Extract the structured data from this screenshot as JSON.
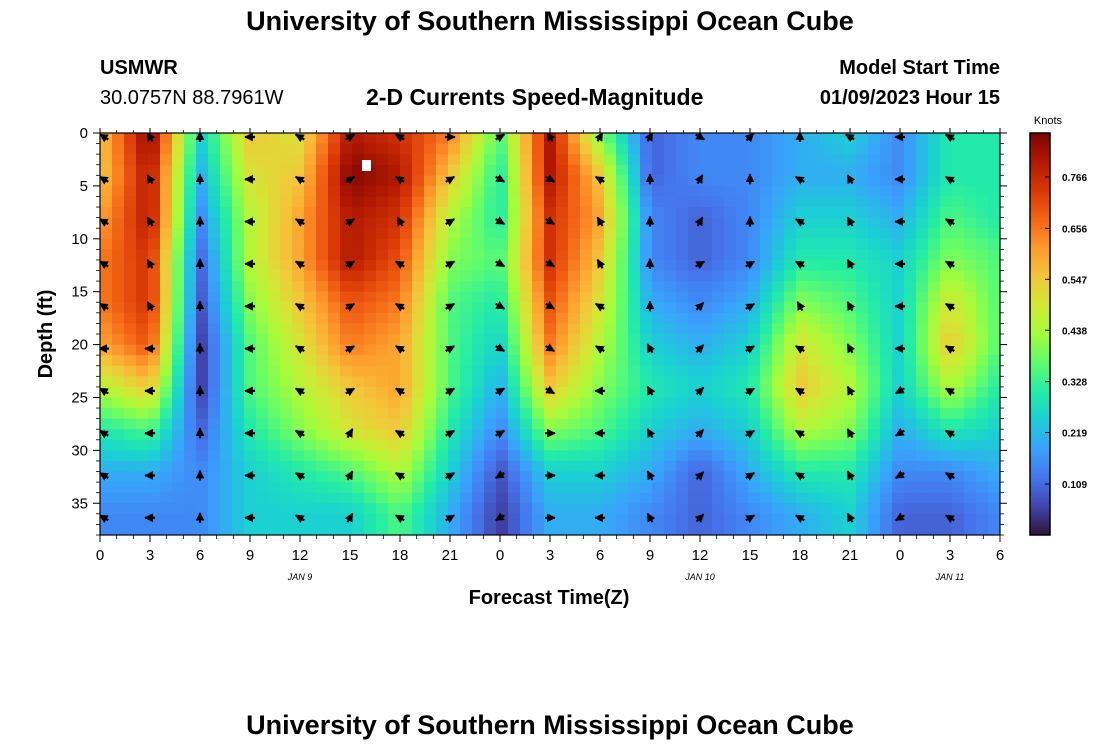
{
  "page": {
    "title": "University of Southern Mississippi Ocean Cube",
    "title_bottom": "University of Southern Mississippi Ocean Cube"
  },
  "header": {
    "station": "USMWR",
    "coords": "30.0757N  88.7961W",
    "model_label": "Model Start Time",
    "model_time": "01/09/2023 Hour 15",
    "subtitle": "2-D Currents Speed-Magnitude"
  },
  "chart_data": {
    "type": "heatmap",
    "title": "2-D Currents Speed-Magnitude",
    "xlabel": "Forecast Time(Z)",
    "ylabel": "Depth (ft)",
    "x_ticks": [
      "0",
      "3",
      "6",
      "9",
      "12",
      "15",
      "18",
      "21",
      "0",
      "3",
      "6",
      "9",
      "12",
      "15",
      "18",
      "21",
      "0",
      "3",
      "6"
    ],
    "x_range_hours": [
      0,
      54
    ],
    "day_labels": [
      {
        "text": "JAN 9",
        "hour": 12
      },
      {
        "text": "JAN 10",
        "hour": 36
      },
      {
        "text": "JAN 11",
        "hour": 51
      }
    ],
    "y_ticks": [
      0,
      5,
      10,
      15,
      20,
      25,
      30,
      35
    ],
    "y_range": [
      0,
      38
    ],
    "y_inverted": true,
    "colorbar": {
      "label": "Knots",
      "ticks": [
        "0.766",
        "0.656",
        "0.547",
        "0.438",
        "0.328",
        "0.219",
        "0.109"
      ],
      "range": [
        0.0,
        0.86
      ],
      "colors": [
        "#30123b",
        "#4145ab",
        "#4675ed",
        "#39a2fc",
        "#1bcfd4",
        "#24eca6",
        "#61fc6c",
        "#a4fc3b",
        "#d1e834",
        "#f3c63a",
        "#fe9b2d",
        "#f36315",
        "#d93806",
        "#b11901",
        "#7a0402"
      ]
    },
    "speed_grid_depths": [
      0,
      4,
      8,
      12,
      16,
      20,
      24,
      28,
      32,
      36
    ],
    "speed_grid_hours": [
      0,
      3,
      6,
      9,
      12,
      15,
      18,
      21,
      24,
      27,
      30,
      33,
      36,
      39,
      42,
      45,
      48,
      51,
      54
    ],
    "speed": [
      [
        0.55,
        0.85,
        0.25,
        0.55,
        0.5,
        0.8,
        0.75,
        0.65,
        0.35,
        0.8,
        0.4,
        0.1,
        0.15,
        0.15,
        0.2,
        0.25,
        0.15,
        0.3,
        0.3
      ],
      [
        0.55,
        0.8,
        0.2,
        0.5,
        0.55,
        0.85,
        0.8,
        0.55,
        0.3,
        0.8,
        0.55,
        0.1,
        0.15,
        0.15,
        0.2,
        0.2,
        0.15,
        0.3,
        0.3
      ],
      [
        0.6,
        0.8,
        0.15,
        0.45,
        0.6,
        0.8,
        0.75,
        0.45,
        0.3,
        0.75,
        0.6,
        0.15,
        0.1,
        0.15,
        0.25,
        0.25,
        0.2,
        0.35,
        0.3
      ],
      [
        0.65,
        0.75,
        0.1,
        0.45,
        0.6,
        0.8,
        0.7,
        0.4,
        0.35,
        0.75,
        0.55,
        0.15,
        0.1,
        0.15,
        0.3,
        0.3,
        0.25,
        0.4,
        0.35
      ],
      [
        0.65,
        0.75,
        0.08,
        0.4,
        0.55,
        0.7,
        0.65,
        0.35,
        0.3,
        0.7,
        0.5,
        0.2,
        0.15,
        0.2,
        0.4,
        0.35,
        0.25,
        0.5,
        0.35
      ],
      [
        0.6,
        0.7,
        0.05,
        0.35,
        0.5,
        0.65,
        0.6,
        0.35,
        0.25,
        0.65,
        0.45,
        0.25,
        0.2,
        0.25,
        0.5,
        0.4,
        0.25,
        0.55,
        0.35
      ],
      [
        0.45,
        0.55,
        0.05,
        0.35,
        0.45,
        0.55,
        0.6,
        0.35,
        0.2,
        0.55,
        0.4,
        0.3,
        0.25,
        0.3,
        0.55,
        0.45,
        0.25,
        0.45,
        0.3
      ],
      [
        0.3,
        0.35,
        0.1,
        0.3,
        0.4,
        0.5,
        0.55,
        0.3,
        0.15,
        0.4,
        0.35,
        0.25,
        0.2,
        0.25,
        0.45,
        0.4,
        0.2,
        0.3,
        0.25
      ],
      [
        0.2,
        0.2,
        0.15,
        0.25,
        0.3,
        0.35,
        0.45,
        0.25,
        0.08,
        0.25,
        0.25,
        0.2,
        0.1,
        0.2,
        0.3,
        0.3,
        0.15,
        0.15,
        0.2
      ],
      [
        0.15,
        0.15,
        0.15,
        0.25,
        0.25,
        0.25,
        0.35,
        0.2,
        0.05,
        0.2,
        0.2,
        0.15,
        0.1,
        0.15,
        0.2,
        0.25,
        0.1,
        0.1,
        0.15
      ]
    ],
    "vector_depths": [
      0,
      4,
      8,
      12,
      16,
      20,
      24,
      28,
      32,
      36
    ],
    "vector_hours": [
      0,
      3,
      6,
      9,
      12,
      15,
      18,
      21,
      24,
      27,
      30,
      33,
      36,
      39,
      42,
      45,
      48,
      51
    ],
    "vector_directions_deg": [
      [
        300,
        330,
        0,
        270,
        300,
        60,
        300,
        90,
        60,
        330,
        30,
        30,
        120,
        45,
        0,
        300,
        270,
        300
      ],
      [
        300,
        330,
        0,
        270,
        300,
        60,
        300,
        60,
        120,
        120,
        300,
        0,
        30,
        0,
        300,
        330,
        270,
        300
      ],
      [
        300,
        330,
        0,
        270,
        300,
        60,
        330,
        60,
        120,
        120,
        330,
        0,
        30,
        0,
        300,
        330,
        270,
        300
      ],
      [
        300,
        330,
        0,
        270,
        300,
        60,
        300,
        60,
        120,
        120,
        330,
        0,
        60,
        60,
        300,
        330,
        270,
        300
      ],
      [
        300,
        330,
        0,
        270,
        300,
        60,
        300,
        60,
        120,
        120,
        300,
        0,
        45,
        60,
        330,
        330,
        270,
        300
      ],
      [
        270,
        270,
        0,
        270,
        300,
        60,
        300,
        60,
        120,
        120,
        300,
        330,
        45,
        60,
        300,
        330,
        270,
        300
      ],
      [
        300,
        270,
        0,
        270,
        300,
        60,
        300,
        60,
        60,
        120,
        270,
        330,
        45,
        60,
        300,
        330,
        240,
        300
      ],
      [
        300,
        270,
        0,
        270,
        300,
        30,
        300,
        60,
        60,
        90,
        270,
        330,
        45,
        60,
        300,
        330,
        240,
        300
      ],
      [
        300,
        270,
        0,
        270,
        300,
        30,
        300,
        60,
        240,
        90,
        270,
        330,
        45,
        60,
        300,
        330,
        240,
        300
      ],
      [
        300,
        270,
        0,
        270,
        300,
        30,
        300,
        60,
        240,
        90,
        270,
        330,
        45,
        60,
        300,
        330,
        240,
        300
      ]
    ]
  }
}
